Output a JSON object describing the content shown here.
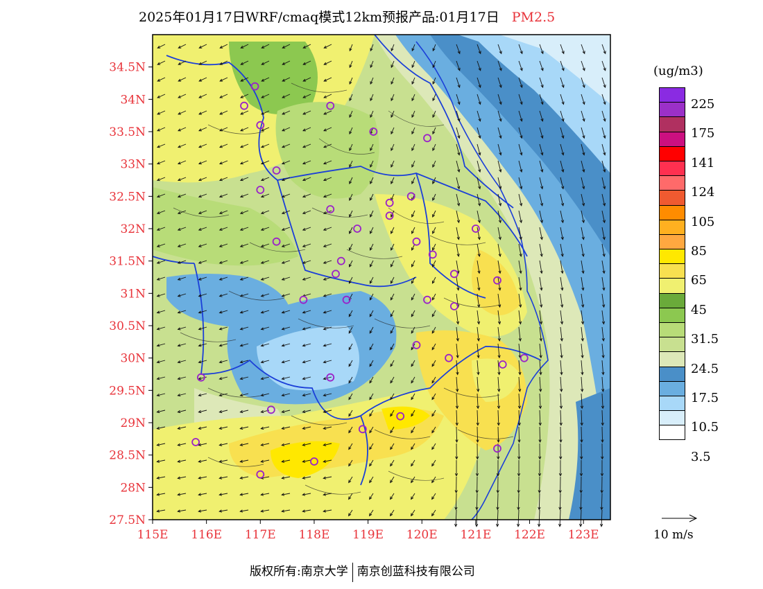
{
  "title": {
    "main": "2025年01月17日WRF/cmaq模式12km预报产品:01月17日",
    "pollutant": "PM2.5"
  },
  "axes": {
    "lat_labels": [
      "34.5N",
      "34N",
      "33.5N",
      "33N",
      "32.5N",
      "32N",
      "31.5N",
      "31N",
      "30.5N",
      "30N",
      "29.5N",
      "29N",
      "28.5N",
      "28N",
      "27.5N"
    ],
    "lat_values": [
      34.5,
      34,
      33.5,
      33,
      32.5,
      32,
      31.5,
      31,
      30.5,
      30,
      29.5,
      29,
      28.5,
      28,
      27.5
    ],
    "lon_labels": [
      "115E",
      "116E",
      "117E",
      "118E",
      "119E",
      "120E",
      "121E",
      "122E",
      "123E"
    ],
    "lon_values": [
      115,
      116,
      117,
      118,
      119,
      120,
      121,
      122,
      123
    ],
    "lon_range": [
      115,
      123.5
    ],
    "lat_range": [
      27.5,
      35
    ]
  },
  "legend": {
    "unit": "(ug/m3)",
    "labels": [
      "225",
      "175",
      "141",
      "124",
      "105",
      "85",
      "65",
      "45",
      "31.5",
      "24.5",
      "17.5",
      "10.5",
      "3.5"
    ],
    "colors": [
      "#8a2be2",
      "#9b30c8",
      "#b03060",
      "#cc1080",
      "#ff0000",
      "#ff3050",
      "#ff6a6a",
      "#f05a30",
      "#ff8c00",
      "#ffb020",
      "#ffa840",
      "#ffe800",
      "#f8e050",
      "#f0f070",
      "#6aaa3a",
      "#8cc850",
      "#b8dc78",
      "#c8e090",
      "#dde8b8",
      "#4a8fc8",
      "#6aaee0",
      "#a8d8f8",
      "#d8eefa",
      "#ffffff"
    ]
  },
  "wind_ref": {
    "label": "10 m/s"
  },
  "footer": {
    "left": "版权所有:南京大学",
    "right": "南京创蓝科技有限公司"
  }
}
